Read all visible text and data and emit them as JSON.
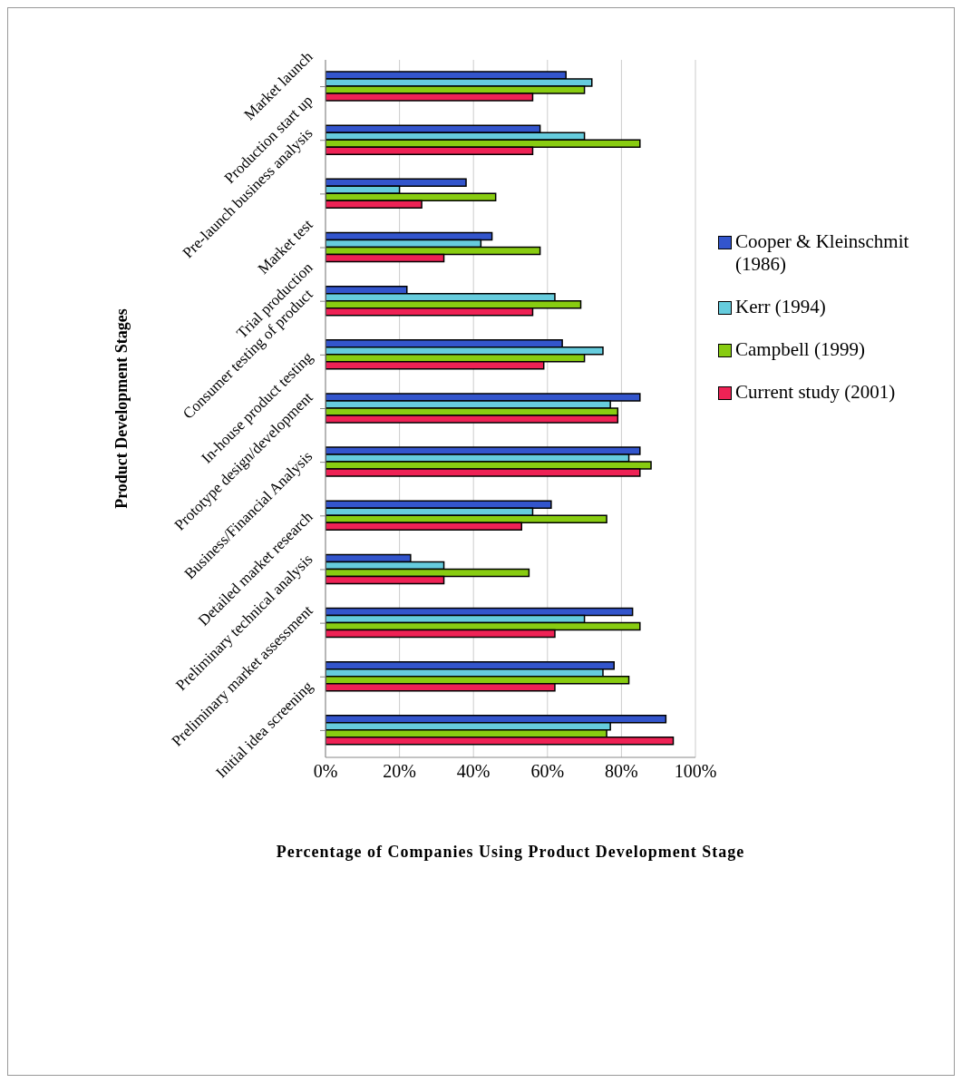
{
  "chart_data": {
    "type": "bar",
    "orientation": "horizontal",
    "xlabel": "Percentage of Companies Using Product Development Stage",
    "ylabel": "Product Development Stages",
    "categories": [
      "Market launch",
      "Production start up",
      "Pre-launch business analysis",
      "Market test",
      "Trial production",
      "Consumer testing of product",
      "In-house product testing",
      "Prototype design/development",
      "Business/Financial Analysis",
      "Detailed market research",
      "Preliminary technical analysis",
      "Preliminary market assessment",
      "Initial idea screening"
    ],
    "series": [
      {
        "name": "Cooper & Kleinschmit (1986)",
        "color": "#3355cc",
        "values": [
          65,
          58,
          38,
          45,
          22,
          64,
          85,
          85,
          61,
          23,
          83,
          78,
          92
        ]
      },
      {
        "name": "Kerr (1994)",
        "color": "#66ccdd",
        "values": [
          72,
          70,
          20,
          42,
          62,
          75,
          77,
          82,
          56,
          32,
          70,
          75,
          77
        ]
      },
      {
        "name": "Campbell (1999)",
        "color": "#88cc11",
        "values": [
          70,
          85,
          46,
          58,
          69,
          70,
          79,
          88,
          76,
          55,
          85,
          82,
          76
        ]
      },
      {
        "name": "Current study (2001)",
        "color": "#ee2255",
        "values": [
          56,
          56,
          26,
          32,
          56,
          59,
          79,
          85,
          53,
          32,
          62,
          62,
          94
        ]
      }
    ],
    "xlim": [
      0,
      100
    ],
    "xticks": [
      {
        "value": 0,
        "label": "0%"
      },
      {
        "value": 20,
        "label": "20%"
      },
      {
        "value": 40,
        "label": "40%"
      },
      {
        "value": 60,
        "label": "60%"
      },
      {
        "value": 80,
        "label": "80%"
      },
      {
        "value": 100,
        "label": "100%"
      }
    ],
    "grid": "x",
    "legend": "right"
  }
}
